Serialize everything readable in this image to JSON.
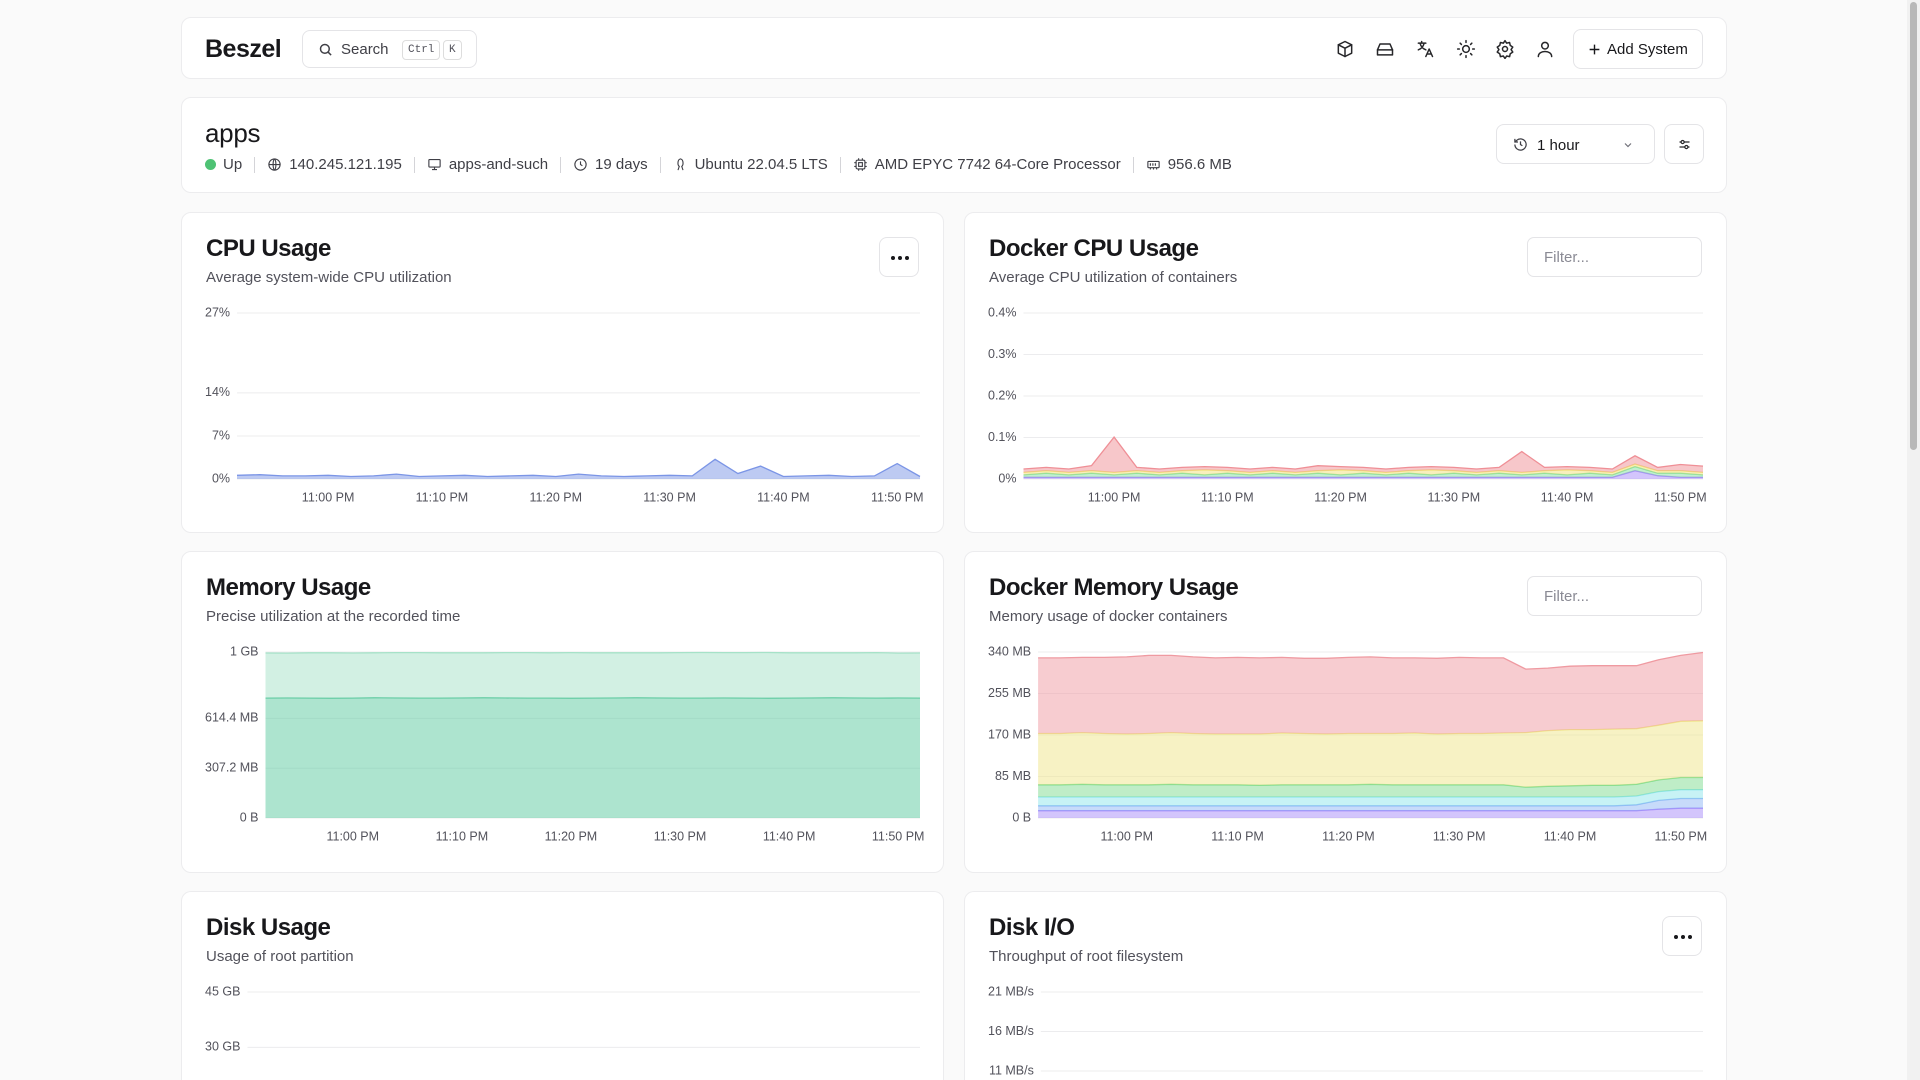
{
  "navbar": {
    "logo": "Beszel",
    "search": "Search",
    "shortcut_key1": "Ctrl",
    "shortcut_key2": "K",
    "add_button": "Add System"
  },
  "system": {
    "name": "apps",
    "status": "Up",
    "ip": "140.245.121.195",
    "hostname": "apps-and-such",
    "uptime": "19 days",
    "os": "Ubuntu 22.04.5 LTS",
    "cpu": "AMD EPYC 7742 64-Core Processor",
    "memory": "956.6 MB",
    "time_range": "1 hour"
  },
  "chart_data": [
    {
      "type": "area",
      "title": "CPU Usage",
      "subtitle": "Average system-wide CPU utilization",
      "categories": [
        null,
        null,
        null,
        null,
        "11:00 PM",
        null,
        null,
        null,
        null,
        "11:10 PM",
        null,
        null,
        null,
        null,
        "11:20 PM",
        null,
        null,
        null,
        null,
        "11:30 PM",
        null,
        null,
        null,
        null,
        "11:40 PM",
        null,
        null,
        null,
        null,
        "11:50 PM",
        null
      ],
      "ylim": [
        0,
        27
      ],
      "yticks": [
        {
          "value": 0,
          "label": "0%"
        },
        {
          "value": 7,
          "label": "7%"
        },
        {
          "value": 14,
          "label": "14%"
        },
        {
          "value": 27,
          "label": "27%"
        }
      ],
      "grid": true,
      "series": [
        {
          "color": "#7b95e6",
          "values": [
            0.6,
            0.7,
            0.5,
            0.5,
            0.6,
            0.4,
            0.5,
            0.8,
            0.4,
            0.5,
            0.6,
            0.4,
            0.5,
            0.6,
            0.4,
            0.8,
            0.5,
            0.4,
            0.5,
            0.6,
            0.5,
            3.2,
            0.9,
            2.1,
            0.4,
            0.5,
            0.6,
            0.4,
            0.5,
            2.5,
            0.4
          ]
        }
      ]
    },
    {
      "type": "area",
      "title": "Docker CPU Usage",
      "subtitle": "Average CPU utilization of containers",
      "filter_placeholder": "Filter...",
      "stacked": true,
      "categories": [
        null,
        null,
        null,
        null,
        "11:00 PM",
        null,
        null,
        null,
        null,
        "11:10 PM",
        null,
        null,
        null,
        null,
        "11:20 PM",
        null,
        null,
        null,
        null,
        "11:30 PM",
        null,
        null,
        null,
        null,
        "11:40 PM",
        null,
        null,
        null,
        null,
        "11:50 PM",
        null
      ],
      "ylim": [
        0,
        0.4
      ],
      "yticks": [
        {
          "value": 0,
          "label": "0%"
        },
        {
          "value": 0.1,
          "label": "0.1%"
        },
        {
          "value": 0.2,
          "label": "0.2%"
        },
        {
          "value": 0.3,
          "label": "0.3%"
        },
        {
          "value": 0.4,
          "label": "0.4%"
        }
      ],
      "grid": true,
      "series": [
        {
          "color": "#a78bfa",
          "values": [
            0.004,
            0.004,
            0.004,
            0.004,
            0.004,
            0.004,
            0.004,
            0.004,
            0.004,
            0.004,
            0.004,
            0.004,
            0.004,
            0.004,
            0.004,
            0.004,
            0.004,
            0.004,
            0.004,
            0.004,
            0.004,
            0.004,
            0.004,
            0.004,
            0.004,
            0.004,
            0.004,
            0.02,
            0.008,
            0.004,
            0.004
          ]
        },
        {
          "color": "#86e0a0",
          "values": [
            0.006,
            0.01,
            0.006,
            0.01,
            0.006,
            0.01,
            0.006,
            0.01,
            0.006,
            0.01,
            0.006,
            0.01,
            0.006,
            0.01,
            0.006,
            0.01,
            0.006,
            0.01,
            0.006,
            0.01,
            0.006,
            0.01,
            0.006,
            0.01,
            0.006,
            0.01,
            0.006,
            0.01,
            0.006,
            0.01,
            0.006
          ]
        },
        {
          "color": "#f2e07a",
          "values": [
            0.006,
            0.006,
            0.006,
            0.006,
            0.006,
            0.006,
            0.006,
            0.006,
            0.012,
            0.006,
            0.006,
            0.006,
            0.006,
            0.006,
            0.012,
            0.006,
            0.006,
            0.006,
            0.012,
            0.006,
            0.006,
            0.006,
            0.006,
            0.006,
            0.012,
            0.006,
            0.006,
            0.006,
            0.006,
            0.006,
            0.006
          ]
        },
        {
          "color": "#ef8f96",
          "values": [
            0.008,
            0.008,
            0.008,
            0.012,
            0.085,
            0.008,
            0.008,
            0.008,
            0.008,
            0.008,
            0.008,
            0.008,
            0.008,
            0.012,
            0.008,
            0.008,
            0.008,
            0.008,
            0.008,
            0.008,
            0.008,
            0.008,
            0.05,
            0.008,
            0.008,
            0.008,
            0.008,
            0.02,
            0.008,
            0.015,
            0.015
          ]
        }
      ]
    },
    {
      "type": "area",
      "title": "Memory Usage",
      "subtitle": "Precise utilization at the recorded time",
      "stacked": true,
      "categories": [
        null,
        null,
        null,
        null,
        "11:00 PM",
        null,
        null,
        null,
        null,
        "11:10 PM",
        null,
        null,
        null,
        null,
        "11:20 PM",
        null,
        null,
        null,
        null,
        "11:30 PM",
        null,
        null,
        null,
        null,
        "11:40 PM",
        null,
        null,
        null,
        null,
        "11:50 PM",
        null
      ],
      "ylim": [
        0,
        1024
      ],
      "yticks": [
        {
          "value": 0,
          "label": "0 B"
        },
        {
          "value": 307.2,
          "label": "307.2 MB"
        },
        {
          "value": 614.4,
          "label": "614.4 MB"
        },
        {
          "value": 1024,
          "label": "1 GB"
        }
      ],
      "grid": true,
      "series": [
        {
          "color": "#5cc99f",
          "values": [
            740,
            741,
            740,
            739,
            740,
            742,
            741,
            740,
            740,
            741,
            742,
            741,
            740,
            740,
            739,
            740,
            741,
            742,
            741,
            740,
            740,
            741,
            740,
            739,
            740,
            741,
            742,
            741,
            740,
            741,
            740
          ]
        },
        {
          "color": "#a6e2c8",
          "values": [
            278,
            276,
            279,
            280,
            278,
            277,
            279,
            280,
            279,
            278,
            277,
            279,
            280,
            279,
            281,
            279,
            278,
            277,
            278,
            280,
            281,
            279,
            280,
            282,
            279,
            278,
            277,
            278,
            280,
            276,
            278
          ]
        }
      ]
    },
    {
      "type": "area",
      "title": "Docker Memory Usage",
      "subtitle": "Memory usage of docker containers",
      "filter_placeholder": "Filter...",
      "stacked": true,
      "categories": [
        null,
        null,
        null,
        null,
        "11:00 PM",
        null,
        null,
        null,
        null,
        "11:10 PM",
        null,
        null,
        null,
        null,
        "11:20 PM",
        null,
        null,
        null,
        null,
        "11:30 PM",
        null,
        null,
        null,
        null,
        "11:40 PM",
        null,
        null,
        null,
        null,
        "11:50 PM",
        null
      ],
      "ylim": [
        0,
        340
      ],
      "yticks": [
        {
          "value": 0,
          "label": "0 B"
        },
        {
          "value": 85,
          "label": "85 MB"
        },
        {
          "value": 170,
          "label": "170 MB"
        },
        {
          "value": 255,
          "label": "255 MB"
        },
        {
          "value": 340,
          "label": "340 MB"
        }
      ],
      "grid": true,
      "series": [
        {
          "color": "#a78bfa",
          "values": [
            15,
            15,
            15,
            15,
            15,
            15,
            15,
            15,
            15,
            15,
            15,
            15,
            15,
            15,
            15,
            15,
            15,
            15,
            15,
            15,
            15,
            15,
            15,
            15,
            15,
            15,
            15,
            15,
            18,
            20,
            20
          ]
        },
        {
          "color": "#8fb8f5",
          "values": [
            10,
            10,
            10,
            10,
            10,
            10,
            10,
            10,
            10,
            10,
            10,
            10,
            10,
            10,
            10,
            10,
            10,
            10,
            10,
            10,
            10,
            10,
            10,
            10,
            10,
            10,
            10,
            12,
            18,
            20,
            20
          ]
        },
        {
          "color": "#90e6ec",
          "values": [
            18,
            18,
            18,
            18,
            18,
            18,
            18,
            18,
            18,
            18,
            18,
            18,
            18,
            18,
            18,
            18,
            18,
            18,
            18,
            18,
            18,
            18,
            18,
            18,
            18,
            18,
            18,
            18,
            18,
            18,
            18
          ]
        },
        {
          "color": "#7fdc8f",
          "values": [
            25,
            25,
            26,
            25,
            25,
            25,
            26,
            25,
            25,
            25,
            24,
            25,
            25,
            25,
            25,
            26,
            25,
            25,
            25,
            25,
            25,
            25,
            20,
            22,
            23,
            24,
            24,
            24,
            24,
            25,
            25
          ]
        },
        {
          "color": "#f0e58a",
          "values": [
            105,
            105,
            106,
            105,
            104,
            105,
            106,
            105,
            104,
            104,
            105,
            106,
            105,
            104,
            105,
            104,
            105,
            106,
            104,
            105,
            105,
            106,
            112,
            114,
            115,
            114,
            115,
            114,
            112,
            115,
            116
          ]
        },
        {
          "color": "#ef9aa1",
          "values": [
            155,
            155,
            154,
            156,
            158,
            160,
            158,
            157,
            156,
            157,
            156,
            155,
            154,
            155,
            156,
            157,
            155,
            154,
            155,
            156,
            155,
            154,
            130,
            128,
            130,
            131,
            130,
            129,
            134,
            135,
            140
          ]
        }
      ]
    },
    {
      "type": "area",
      "title": "Disk Usage",
      "subtitle": "Usage of root partition",
      "ylim": [
        0,
        45
      ],
      "yticks": [
        {
          "value": 30,
          "label": "30 GB"
        },
        {
          "value": 45,
          "label": "45 GB"
        }
      ],
      "grid": true
    },
    {
      "type": "area",
      "title": "Disk I/O",
      "subtitle": "Throughput of root filesystem",
      "ylim": [
        0,
        21
      ],
      "yticks": [
        {
          "value": 11,
          "label": "11 MB/s"
        },
        {
          "value": 16,
          "label": "16 MB/s"
        },
        {
          "value": 21,
          "label": "21 MB/s"
        }
      ],
      "grid": true
    }
  ]
}
